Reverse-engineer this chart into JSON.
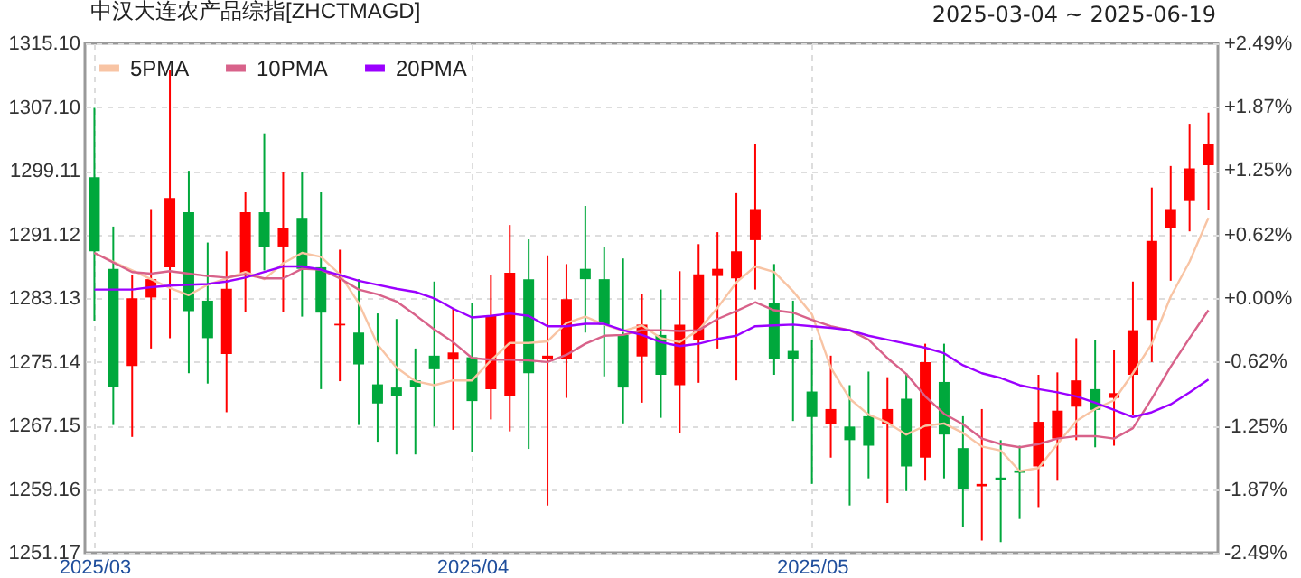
{
  "chart_data": {
    "type": "candlestick",
    "title": "中汉大连农产品综指[ZHCTMAGD]",
    "subtitle": "2025-03-04 ~ 2025-06-19",
    "categories": [
      "2025/03",
      null,
      null,
      null,
      null,
      null,
      null,
      null,
      null,
      null,
      null,
      null,
      null,
      null,
      null,
      null,
      null,
      null,
      null,
      null,
      "2025/04",
      null,
      null,
      null,
      null,
      null,
      null,
      null,
      null,
      null,
      null,
      null,
      null,
      null,
      null,
      null,
      null,
      null,
      "2025/05",
      null,
      null,
      null,
      null,
      null,
      null,
      null,
      null,
      null,
      null,
      null,
      null,
      null,
      null,
      null,
      null,
      null,
      null,
      null,
      null,
      null
    ],
    "ohlc": [
      [
        1298.3,
        1307.0,
        1280.3,
        1289.0
      ],
      [
        1286.8,
        1292.1,
        1267.2,
        1271.9
      ],
      [
        1274.6,
        1286.0,
        1265.7,
        1283.1
      ],
      [
        1283.2,
        1294.3,
        1276.8,
        1285.5
      ],
      [
        1287.0,
        1311.8,
        1278.1,
        1295.7
      ],
      [
        1293.9,
        1299.1,
        1273.7,
        1281.5
      ],
      [
        1282.8,
        1290.1,
        1272.4,
        1278.1
      ],
      [
        1276.1,
        1289.0,
        1268.8,
        1284.3
      ],
      [
        1286.2,
        1296.4,
        1281.4,
        1293.9
      ],
      [
        1293.9,
        1303.8,
        1286.6,
        1289.5
      ],
      [
        1289.6,
        1299.0,
        1281.4,
        1291.9
      ],
      [
        1293.2,
        1299.0,
        1280.8,
        1286.8
      ],
      [
        1287.0,
        1296.4,
        1271.7,
        1281.3
      ],
      [
        1279.7,
        1289.2,
        1272.7,
        1279.9
      ],
      [
        1278.8,
        1285.5,
        1267.2,
        1274.8
      ],
      [
        1272.3,
        1281.2,
        1265.1,
        1269.9
      ],
      [
        1271.9,
        1280.5,
        1263.5,
        1270.8
      ],
      [
        1272.8,
        1276.8,
        1263.5,
        1272.0
      ],
      [
        1275.9,
        1285.2,
        1267.0,
        1274.2
      ],
      [
        1275.4,
        1281.8,
        1266.6,
        1276.3
      ],
      [
        1275.7,
        1282.5,
        1263.8,
        1270.2
      ],
      [
        1271.7,
        1286.0,
        1267.9,
        1280.9
      ],
      [
        1270.8,
        1292.3,
        1266.4,
        1286.3
      ],
      [
        1285.5,
        1290.5,
        1264.2,
        1273.7
      ],
      [
        1275.5,
        1288.5,
        1257.1,
        1275.9
      ],
      [
        1275.5,
        1287.4,
        1270.6,
        1283.0
      ],
      [
        1286.8,
        1294.7,
        1278.8,
        1285.5
      ],
      [
        1285.5,
        1289.6,
        1273.3,
        1279.8
      ],
      [
        1278.5,
        1288.1,
        1267.4,
        1271.9
      ],
      [
        1275.8,
        1283.6,
        1270.0,
        1279.8
      ],
      [
        1278.5,
        1284.2,
        1268.1,
        1273.5
      ],
      [
        1272.2,
        1286.5,
        1266.2,
        1279.8
      ],
      [
        1277.9,
        1289.9,
        1272.5,
        1286.1
      ],
      [
        1285.9,
        1291.4,
        1276.8,
        1286.8
      ],
      [
        1285.6,
        1296.3,
        1272.8,
        1289.0
      ],
      [
        1290.4,
        1302.5,
        1284.2,
        1294.3
      ],
      [
        1282.5,
        1287.4,
        1273.5,
        1275.5
      ],
      [
        1276.5,
        1282.8,
        1267.7,
        1275.5
      ],
      [
        1271.4,
        1277.9,
        1259.8,
        1268.2
      ],
      [
        1267.3,
        1275.9,
        1263.1,
        1269.2
      ],
      [
        1267.0,
        1272.2,
        1257.1,
        1265.3
      ],
      [
        1268.3,
        1273.9,
        1260.5,
        1264.6
      ],
      [
        1267.3,
        1273.2,
        1257.4,
        1269.2
      ],
      [
        1270.5,
        1273.7,
        1258.9,
        1262.0
      ],
      [
        1263.1,
        1277.4,
        1260.2,
        1275.1
      ],
      [
        1272.6,
        1277.4,
        1260.5,
        1266.0
      ],
      [
        1264.3,
        1268.3,
        1254.4,
        1259.1
      ],
      [
        1259.5,
        1269.2,
        1252.7,
        1259.8
      ],
      [
        1260.6,
        1265.3,
        1252.5,
        1260.3
      ],
      [
        1261.5,
        1264.6,
        1255.4,
        1261.2
      ],
      [
        1262.0,
        1273.5,
        1256.9,
        1267.6
      ],
      [
        1265.5,
        1273.8,
        1260.2,
        1269.0
      ],
      [
        1269.5,
        1278.1,
        1265.3,
        1272.8
      ],
      [
        1271.7,
        1277.9,
        1264.4,
        1269.1
      ],
      [
        1270.6,
        1276.6,
        1264.6,
        1271.2
      ],
      [
        1273.5,
        1285.2,
        1268.5,
        1279.1
      ],
      [
        1280.4,
        1297.0,
        1275.1,
        1290.3
      ],
      [
        1291.9,
        1299.7,
        1285.3,
        1294.3
      ],
      [
        1295.3,
        1305.0,
        1291.5,
        1299.4
      ],
      [
        1299.8,
        1306.4,
        1294.2,
        1302.5
      ]
    ],
    "colors": [
      "#00a83c",
      "#00a83c",
      "#ff0000",
      "#ff0000",
      "#ff0000",
      "#00a83c",
      "#00a83c",
      "#ff0000",
      "#ff0000",
      "#00a83c",
      "#ff0000",
      "#00a83c",
      "#00a83c",
      "#ff0000",
      "#00a83c",
      "#00a83c",
      "#00a83c",
      "#00a83c",
      "#00a83c",
      "#ff0000",
      "#00a83c",
      "#ff0000",
      "#ff0000",
      "#00a83c",
      "#ff0000",
      "#ff0000",
      "#00a83c",
      "#00a83c",
      "#00a83c",
      "#ff0000",
      "#00a83c",
      "#ff0000",
      "#ff0000",
      "#ff0000",
      "#ff0000",
      "#ff0000",
      "#00a83c",
      "#00a83c",
      "#00a83c",
      "#ff0000",
      "#00a83c",
      "#00a83c",
      "#ff0000",
      "#00a83c",
      "#ff0000",
      "#00a83c",
      "#00a83c",
      "#ff0000",
      "#00a83c",
      "#00a83c",
      "#ff0000",
      "#ff0000",
      "#ff0000",
      "#00a83c",
      "#ff0000",
      "#ff0000",
      "#ff0000",
      "#ff0000",
      "#ff0000",
      "#ff0000"
    ],
    "series": [
      {
        "name": "5PMA",
        "type": "line",
        "color": "#f8c4a4",
        "values": [
          1288.8,
          1287.7,
          1286.6,
          1285.5,
          1284.4,
          1283.5,
          1284.8,
          1285.6,
          1286.4,
          1285.5,
          1287.5,
          1288.8,
          1288.3,
          1286.1,
          1282.5,
          1277.3,
          1274.4,
          1272.7,
          1272.2,
          1272.8,
          1272.8,
          1275.3,
          1277.5,
          1277.5,
          1277.7,
          1280.0,
          1280.8,
          1279.8,
          1279.0,
          1279.7,
          1278.1,
          1277.6,
          1279.1,
          1281.9,
          1285.1,
          1287.1,
          1286.4,
          1284.0,
          1281.1,
          1274.4,
          1270.5,
          1268.5,
          1267.5,
          1266.0,
          1267.1,
          1267.4,
          1266.2,
          1264.5,
          1264.0,
          1261.4,
          1261.8,
          1264.8,
          1267.7,
          1269.2,
          1270.3,
          1273.7,
          1277.4,
          1283.3,
          1287.7,
          1293.2
        ]
      },
      {
        "name": "10PMA",
        "type": "line",
        "color": "#d8628a",
        "values": [
          1288.8,
          1287.6,
          1286.4,
          1286.2,
          1286.5,
          1286.2,
          1285.9,
          1285.7,
          1286.1,
          1285.6,
          1285.6,
          1286.8,
          1286.7,
          1285.6,
          1284.2,
          1283.6,
          1282.7,
          1281.0,
          1279.2,
          1277.6,
          1275.6,
          1275.4,
          1275.4,
          1275.3,
          1275.1,
          1276.0,
          1277.4,
          1278.4,
          1278.5,
          1279.1,
          1279.1,
          1279.0,
          1279.1,
          1280.5,
          1281.5,
          1282.6,
          1281.6,
          1281.3,
          1280.4,
          1279.6,
          1279.1,
          1277.9,
          1275.6,
          1273.6,
          1270.8,
          1268.6,
          1267.3,
          1265.5,
          1264.8,
          1264.4,
          1264.8,
          1265.5,
          1265.8,
          1265.8,
          1265.5,
          1266.8,
          1270.5,
          1274.5,
          1278.1,
          1281.6
        ]
      },
      {
        "name": "20PMA",
        "type": "line",
        "color": "#9b00ff",
        "values": [
          1284.2,
          1284.2,
          1284.2,
          1284.5,
          1284.7,
          1284.8,
          1284.9,
          1285.2,
          1285.7,
          1286.4,
          1287.1,
          1287.1,
          1286.7,
          1286.0,
          1285.3,
          1284.8,
          1284.3,
          1283.9,
          1283.1,
          1281.8,
          1280.7,
          1280.9,
          1281.2,
          1280.9,
          1279.6,
          1279.6,
          1279.9,
          1279.9,
          1279.1,
          1278.5,
          1277.6,
          1277.1,
          1277.4,
          1278.0,
          1278.4,
          1279.6,
          1279.7,
          1279.8,
          1279.6,
          1279.4,
          1279.1,
          1278.4,
          1277.9,
          1277.4,
          1276.9,
          1276.2,
          1274.7,
          1273.7,
          1273.1,
          1272.2,
          1271.7,
          1271.3,
          1270.8,
          1270.0,
          1269.1,
          1268.2,
          1268.8,
          1269.8,
          1271.3,
          1272.9
        ]
      }
    ],
    "ylim": [
      1251.17,
      1315.1
    ],
    "yticks": [
      1251.17,
      1259.16,
      1267.15,
      1275.14,
      1283.13,
      1291.12,
      1299.11,
      {
        "value": 1307.1,
        "label": "1307.10"
      },
      {
        "value": 1315.1,
        "label": "1315.10"
      }
    ],
    "y2lim": [
      -2.49,
      2.49
    ],
    "y2ticks": [
      {
        "value": -2.49,
        "label": "-2.49%"
      },
      {
        "value": -1.87,
        "label": "-1.87%"
      },
      {
        "value": -1.25,
        "label": "-1.25%"
      },
      {
        "value": -0.62,
        "label": "-0.62%"
      },
      {
        "value": 0,
        "label": "+0.00%"
      },
      {
        "value": 0.62,
        "label": "+0.62%"
      },
      {
        "value": 1.25,
        "label": "+1.25%"
      },
      {
        "value": 1.87,
        "label": "+1.87%"
      },
      {
        "value": 2.49,
        "label": "+2.49%"
      }
    ],
    "grid": true,
    "legend": "top left",
    "marker": "none"
  }
}
